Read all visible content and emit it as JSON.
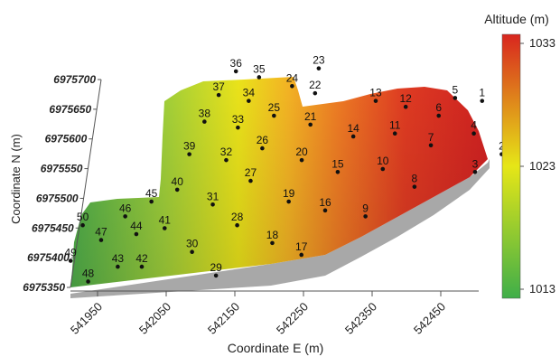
{
  "chart_data": {
    "type": "scatter",
    "title": "",
    "xlabel": "Coordinate E (m)",
    "ylabel": "Coordinate N (m)",
    "x_ticks": [
      541950,
      542050,
      542150,
      542250,
      542350,
      542450
    ],
    "y_ticks": [
      6975350,
      6975400,
      6975450,
      6975500,
      6975550,
      6975600,
      6975650,
      6975700
    ],
    "grid": false,
    "surface": "3D terrain surface colored by altitude",
    "colorbar": {
      "title": "Altitude (m)",
      "ticks": [
        1013,
        1023,
        1033
      ],
      "range": [
        1013,
        1033
      ],
      "colors": [
        "#3fae49",
        "#e6e617",
        "#d8261f"
      ]
    },
    "points": [
      {
        "label": "1",
        "x": 542470,
        "y": 6975665
      },
      {
        "label": "2",
        "x": 542510,
        "y": 6975575
      },
      {
        "label": "3",
        "x": 542475,
        "y": 6975545
      },
      {
        "label": "4",
        "x": 542465,
        "y": 6975610
      },
      {
        "label": "5",
        "x": 542430,
        "y": 6975670
      },
      {
        "label": "6",
        "x": 542410,
        "y": 6975640
      },
      {
        "label": "7",
        "x": 542405,
        "y": 6975590
      },
      {
        "label": "8",
        "x": 542390,
        "y": 6975520
      },
      {
        "label": "9",
        "x": 542325,
        "y": 6975470
      },
      {
        "label": "10",
        "x": 542340,
        "y": 6975550
      },
      {
        "label": "11",
        "x": 542350,
        "y": 6975610
      },
      {
        "label": "12",
        "x": 542360,
        "y": 6975655
      },
      {
        "label": "13",
        "x": 542315,
        "y": 6975665
      },
      {
        "label": "14",
        "x": 542290,
        "y": 6975605
      },
      {
        "label": "15",
        "x": 542275,
        "y": 6975545
      },
      {
        "label": "16",
        "x": 542265,
        "y": 6975480
      },
      {
        "label": "17",
        "x": 542240,
        "y": 6975405
      },
      {
        "label": "18",
        "x": 542195,
        "y": 6975425
      },
      {
        "label": "19",
        "x": 542210,
        "y": 6975495
      },
      {
        "label": "20",
        "x": 542220,
        "y": 6975565
      },
      {
        "label": "21",
        "x": 542225,
        "y": 6975625
      },
      {
        "label": "22",
        "x": 542225,
        "y": 6975678
      },
      {
        "label": "23",
        "x": 542225,
        "y": 6975720
      },
      {
        "label": "24",
        "x": 542190,
        "y": 6975690
      },
      {
        "label": "25",
        "x": 542170,
        "y": 6975640
      },
      {
        "label": "26",
        "x": 542160,
        "y": 6975585
      },
      {
        "label": "27",
        "x": 542150,
        "y": 6975530
      },
      {
        "label": "28",
        "x": 542140,
        "y": 6975455
      },
      {
        "label": "29",
        "x": 542120,
        "y": 6975370
      },
      {
        "label": "30",
        "x": 542080,
        "y": 6975410
      },
      {
        "label": "31",
        "x": 542100,
        "y": 6975490
      },
      {
        "label": "32",
        "x": 542110,
        "y": 6975565
      },
      {
        "label": "33",
        "x": 542120,
        "y": 6975620
      },
      {
        "label": "34",
        "x": 542130,
        "y": 6975665
      },
      {
        "label": "35",
        "x": 542140,
        "y": 6975705
      },
      {
        "label": "36",
        "x": 542105,
        "y": 6975715
      },
      {
        "label": "37",
        "x": 542085,
        "y": 6975675
      },
      {
        "label": "38",
        "x": 542070,
        "y": 6975630
      },
      {
        "label": "39",
        "x": 542055,
        "y": 6975575
      },
      {
        "label": "40",
        "x": 542045,
        "y": 6975515
      },
      {
        "label": "41",
        "x": 542035,
        "y": 6975450
      },
      {
        "label": "42",
        "x": 542010,
        "y": 6975385
      },
      {
        "label": "43",
        "x": 541975,
        "y": 6975385
      },
      {
        "label": "44",
        "x": 541995,
        "y": 6975440
      },
      {
        "label": "45",
        "x": 542010,
        "y": 6975495
      },
      {
        "label": "46",
        "x": 541975,
        "y": 6975470
      },
      {
        "label": "47",
        "x": 541945,
        "y": 6975430
      },
      {
        "label": "48",
        "x": 541935,
        "y": 6975360
      },
      {
        "label": "49",
        "x": 541905,
        "y": 6975395
      },
      {
        "label": "50",
        "x": 541915,
        "y": 6975455
      }
    ]
  }
}
